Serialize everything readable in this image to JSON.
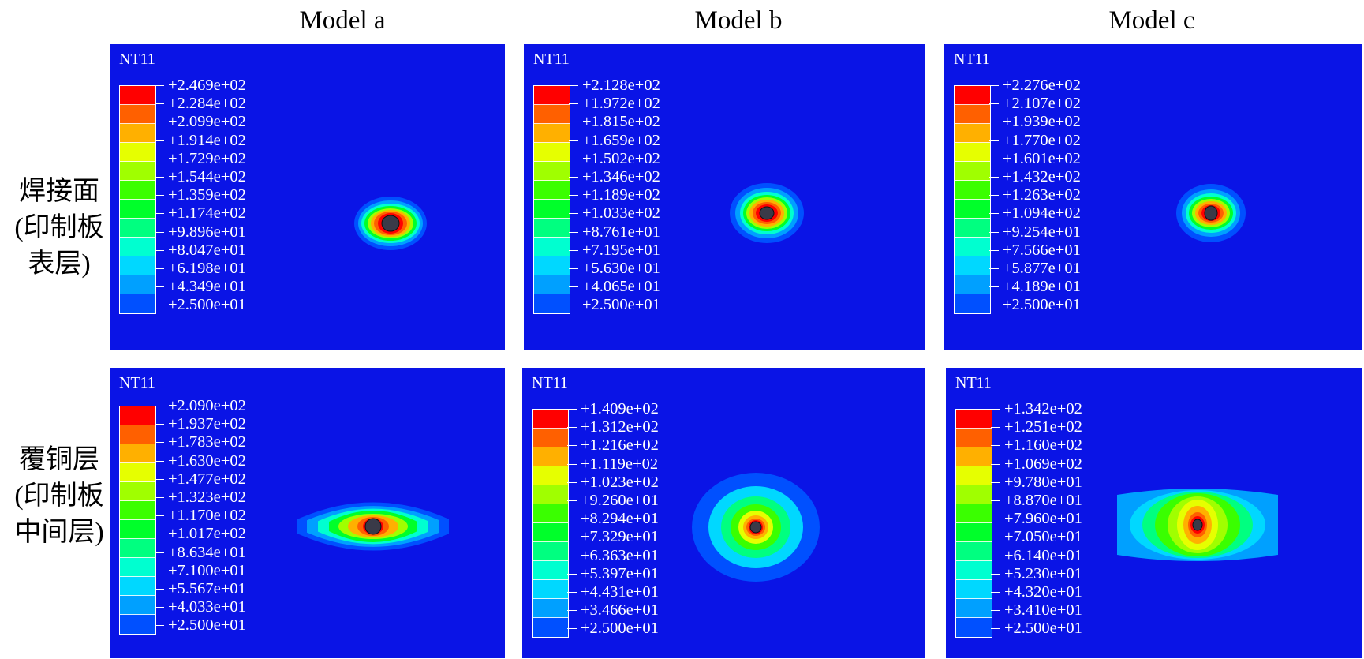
{
  "column_titles": [
    "Model a",
    "Model b",
    "Model c"
  ],
  "row_labels": [
    [
      "焊接面",
      "(印制板",
      "表层)"
    ],
    [
      "覆铜层",
      "(印制板",
      "中间层)"
    ]
  ],
  "colors": {
    "background": "#0a14e6",
    "contour_bands": [
      "#0000ff",
      "#0050ff",
      "#00a0ff",
      "#00d8ff",
      "#00ffd0",
      "#00ff80",
      "#00ff2a",
      "#3aff00",
      "#a0ff00",
      "#e6ff00",
      "#ffb000",
      "#ff6000",
      "#ff0000"
    ],
    "hole": "#3a3a48"
  },
  "panels": [
    {
      "id": "a-surface",
      "variable": "NT11",
      "labels": [
        "+2.469e+02",
        "+2.284e+02",
        "+2.099e+02",
        "+1.914e+02",
        "+1.729e+02",
        "+1.544e+02",
        "+1.359e+02",
        "+1.174e+02",
        "+9.896e+01",
        "+8.047e+01",
        "+6.198e+01",
        "+4.349e+01",
        "+2.500e+01"
      ]
    },
    {
      "id": "b-surface",
      "variable": "NT11",
      "labels": [
        "+2.128e+02",
        "+1.972e+02",
        "+1.815e+02",
        "+1.659e+02",
        "+1.502e+02",
        "+1.346e+02",
        "+1.189e+02",
        "+1.033e+02",
        "+8.761e+01",
        "+7.195e+01",
        "+5.630e+01",
        "+4.065e+01",
        "+2.500e+01"
      ]
    },
    {
      "id": "c-surface",
      "variable": "NT11",
      "labels": [
        "+2.276e+02",
        "+2.107e+02",
        "+1.939e+02",
        "+1.770e+02",
        "+1.601e+02",
        "+1.432e+02",
        "+1.263e+02",
        "+1.094e+02",
        "+9.254e+01",
        "+7.566e+01",
        "+5.877e+01",
        "+4.189e+01",
        "+2.500e+01"
      ]
    },
    {
      "id": "a-copper",
      "variable": "NT11",
      "labels": [
        "+2.090e+02",
        "+1.937e+02",
        "+1.783e+02",
        "+1.630e+02",
        "+1.477e+02",
        "+1.323e+02",
        "+1.170e+02",
        "+1.017e+02",
        "+8.634e+01",
        "+7.100e+01",
        "+5.567e+01",
        "+4.033e+01",
        "+2.500e+01"
      ]
    },
    {
      "id": "b-copper",
      "variable": "NT11",
      "labels": [
        "+1.409e+02",
        "+1.312e+02",
        "+1.216e+02",
        "+1.119e+02",
        "+1.023e+02",
        "+9.260e+01",
        "+8.294e+01",
        "+7.329e+01",
        "+6.363e+01",
        "+5.397e+01",
        "+4.431e+01",
        "+3.466e+01",
        "+2.500e+01"
      ]
    },
    {
      "id": "c-copper",
      "variable": "NT11",
      "labels": [
        "+1.342e+02",
        "+1.251e+02",
        "+1.160e+02",
        "+1.069e+02",
        "+9.780e+01",
        "+8.870e+01",
        "+7.960e+01",
        "+7.050e+01",
        "+6.140e+01",
        "+5.230e+01",
        "+4.320e+01",
        "+3.410e+01",
        "+2.500e+01"
      ]
    }
  ]
}
